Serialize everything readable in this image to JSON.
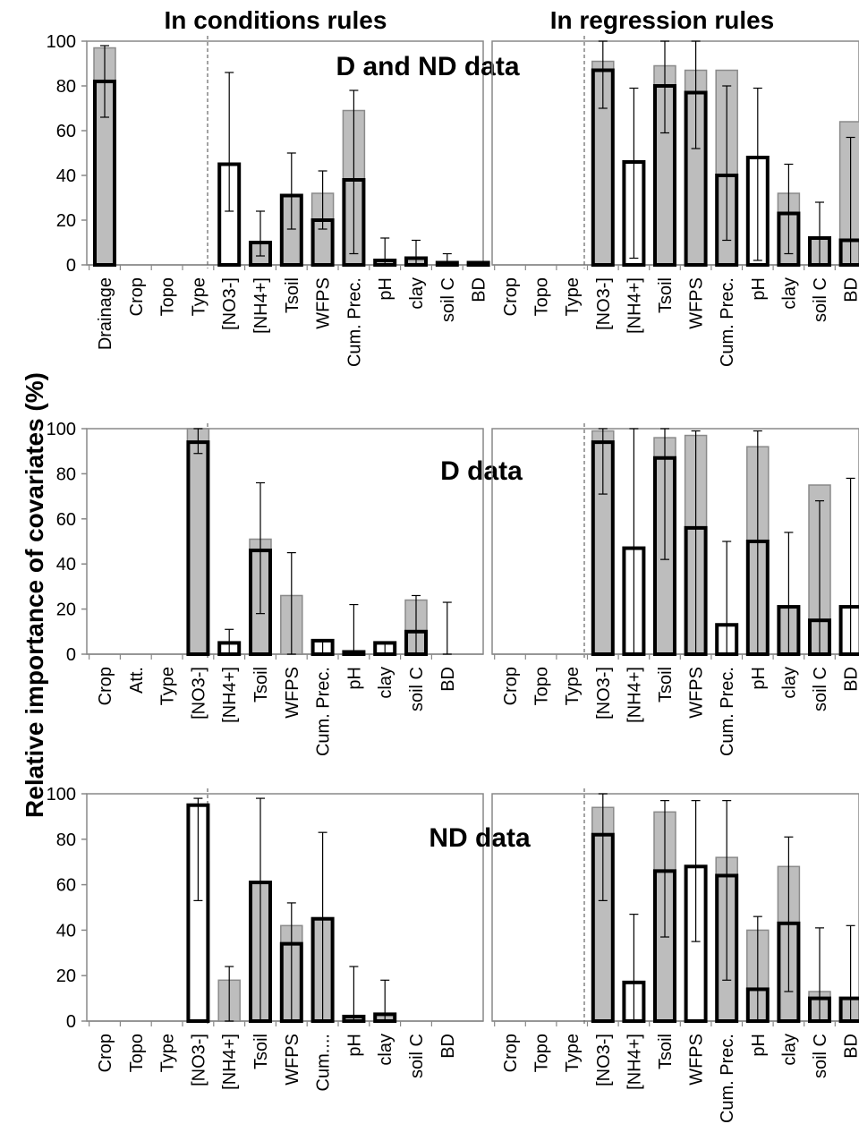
{
  "figure": {
    "column_titles": [
      "In conditions rules",
      "In regression rules"
    ],
    "ylabel": "Relative importance of covariates (%)"
  },
  "style": {
    "grey_bar": "#bdbdbd",
    "black_bar_outline": "#000000",
    "frame": "#888888",
    "divider": "#666666"
  },
  "chart_data": [
    {
      "type": "bar",
      "panel": "D and ND data",
      "title": "D and ND data",
      "section": "In conditions rules",
      "categories": [
        "Drainage",
        "Crop",
        "Topo",
        "Type",
        "[NO3-]",
        "[NH4+]",
        "Tsoil",
        "WFPS",
        "Cum. Prec.",
        "pH",
        "clay",
        "soil C",
        "BD"
      ],
      "ylim": [
        0,
        100
      ],
      "yticks": [
        0,
        20,
        40,
        60,
        80,
        100
      ],
      "series": [
        {
          "values": [
            97,
            null,
            null,
            null,
            40,
            8,
            30,
            32,
            69,
            1,
            2,
            1,
            0
          ]
        },
        {
          "values": [
            82,
            null,
            null,
            null,
            45,
            10,
            31,
            20,
            38,
            2,
            3,
            1,
            1
          ],
          "fill": [
            "grey",
            null,
            null,
            null,
            "white",
            "grey",
            "grey",
            "grey",
            "grey",
            "grey",
            "grey",
            "grey",
            "grey"
          ]
        }
      ],
      "error_bars": [
        [
          66,
          98
        ],
        null,
        null,
        null,
        [
          24,
          86
        ],
        [
          4,
          24
        ],
        [
          16,
          50
        ],
        [
          16,
          42
        ],
        [
          5,
          78
        ],
        [
          0,
          12
        ],
        [
          0,
          11
        ],
        [
          0,
          5
        ],
        [
          0,
          0
        ]
      ]
    },
    {
      "type": "bar",
      "panel": "D and ND data",
      "section": "In regression rules",
      "categories": [
        "Crop",
        "Topo",
        "Type",
        "[NO3-]",
        "[NH4+]",
        "Tsoil",
        "WFPS",
        "Cum. Prec.",
        "pH",
        "clay",
        "soil C",
        "BD"
      ],
      "ylim": [
        0,
        100
      ],
      "series": [
        {
          "values": [
            null,
            null,
            null,
            91,
            7,
            89,
            87,
            87,
            15,
            32,
            10,
            64
          ]
        },
        {
          "values": [
            null,
            null,
            null,
            87,
            46,
            80,
            77,
            40,
            48,
            23,
            12,
            11
          ],
          "fill": [
            null,
            null,
            null,
            "grey",
            "white",
            "grey",
            "grey",
            "grey",
            "white",
            "grey",
            "grey",
            "grey"
          ]
        }
      ],
      "error_bars": [
        null,
        null,
        null,
        [
          70,
          100
        ],
        [
          3,
          79
        ],
        [
          59,
          100
        ],
        [
          52,
          100
        ],
        [
          11,
          80
        ],
        [
          2,
          79
        ],
        [
          5,
          45
        ],
        [
          0,
          28
        ],
        [
          0,
          57
        ]
      ]
    },
    {
      "type": "bar",
      "panel": "D data",
      "title": "D data",
      "section": "In conditions rules",
      "categories": [
        "Crop",
        "Att.",
        "Type",
        "[NO3-]",
        "[NH4+]",
        "Tsoil",
        "WFPS",
        "Cum. Prec.",
        "pH",
        "clay",
        "soil C",
        "BD"
      ],
      "ylim": [
        0,
        100
      ],
      "series": [
        {
          "values": [
            null,
            null,
            null,
            100,
            3,
            51,
            26,
            2,
            1,
            2,
            24,
            0
          ]
        },
        {
          "values": [
            null,
            null,
            null,
            94,
            5,
            46,
            null,
            6,
            1,
            5,
            10,
            0
          ],
          "fill": [
            null,
            null,
            null,
            "grey",
            "white",
            "grey",
            null,
            "white",
            "white",
            "white",
            "grey",
            null
          ]
        }
      ],
      "error_bars": [
        null,
        null,
        null,
        [
          89,
          100
        ],
        [
          0,
          11
        ],
        [
          18,
          76
        ],
        [
          0,
          45
        ],
        [
          0,
          6
        ],
        [
          0,
          22
        ],
        [
          0,
          5
        ],
        [
          0,
          26
        ],
        [
          0,
          23
        ]
      ]
    },
    {
      "type": "bar",
      "panel": "D data",
      "section": "In regression rules",
      "categories": [
        "Crop",
        "Topo",
        "Type",
        "[NO3-]",
        "[NH4+]",
        "Tsoil",
        "WFPS",
        "Cum. Prec.",
        "pH",
        "clay",
        "soil C",
        "BD"
      ],
      "ylim": [
        0,
        100
      ],
      "series": [
        {
          "values": [
            null,
            null,
            null,
            99,
            5,
            96,
            97,
            5,
            92,
            21,
            75,
            5
          ]
        },
        {
          "values": [
            null,
            null,
            null,
            94,
            47,
            87,
            56,
            13,
            50,
            21,
            15,
            21
          ],
          "fill": [
            null,
            null,
            null,
            "grey",
            "white",
            "grey",
            "grey",
            "white",
            "grey",
            "grey",
            "grey",
            "white"
          ]
        }
      ],
      "error_bars": [
        null,
        null,
        null,
        [
          71,
          100
        ],
        [
          0,
          100
        ],
        [
          42,
          100
        ],
        [
          0,
          99
        ],
        [
          0,
          50
        ],
        [
          0,
          99
        ],
        [
          0,
          54
        ],
        [
          0,
          68
        ],
        [
          0,
          78
        ]
      ]
    },
    {
      "type": "bar",
      "panel": "ND data",
      "title": "ND data",
      "section": "In conditions rules",
      "categories": [
        "Crop",
        "Topo",
        "Type",
        "[NO3-]",
        "[NH4+]",
        "Tsoil",
        "WFPS",
        "Cum....",
        "pH",
        "clay",
        "soil C",
        "BD"
      ],
      "ylim": [
        0,
        100
      ],
      "series": [
        {
          "values": [
            null,
            null,
            null,
            70,
            18,
            60,
            42,
            40,
            1,
            2,
            0,
            0
          ]
        },
        {
          "values": [
            null,
            null,
            null,
            95,
            null,
            61,
            34,
            45,
            2,
            3,
            0,
            0
          ],
          "fill": [
            null,
            null,
            null,
            "white",
            null,
            "grey",
            "grey",
            "grey",
            "grey",
            "grey",
            null,
            null
          ]
        }
      ],
      "error_bars": [
        null,
        null,
        null,
        [
          53,
          98
        ],
        [
          0,
          24
        ],
        [
          0,
          98
        ],
        [
          0,
          52
        ],
        [
          0,
          83
        ],
        [
          0,
          24
        ],
        [
          0,
          18
        ],
        null,
        null
      ]
    },
    {
      "type": "bar",
      "panel": "ND data",
      "section": "In regression rules",
      "categories": [
        "Crop",
        "Topo",
        "Type",
        "[NO3-]",
        "[NH4+]",
        "Tsoil",
        "WFPS",
        "Cum. Prec.",
        "pH",
        "clay",
        "soil C",
        "BD"
      ],
      "ylim": [
        0,
        100
      ],
      "series": [
        {
          "values": [
            null,
            null,
            null,
            94,
            6,
            92,
            63,
            72,
            40,
            68,
            13,
            8
          ]
        },
        {
          "values": [
            null,
            null,
            null,
            82,
            17,
            66,
            68,
            64,
            14,
            43,
            10,
            10
          ],
          "fill": [
            null,
            null,
            null,
            "grey",
            "white",
            "grey",
            "white",
            "grey",
            "grey",
            "grey",
            "grey",
            "grey"
          ]
        }
      ],
      "error_bars": [
        null,
        null,
        null,
        [
          53,
          100
        ],
        [
          0,
          47
        ],
        [
          37,
          97
        ],
        [
          35,
          97
        ],
        [
          18,
          97
        ],
        [
          0,
          46
        ],
        [
          13,
          81
        ],
        [
          0,
          41
        ],
        [
          0,
          42
        ]
      ]
    }
  ]
}
